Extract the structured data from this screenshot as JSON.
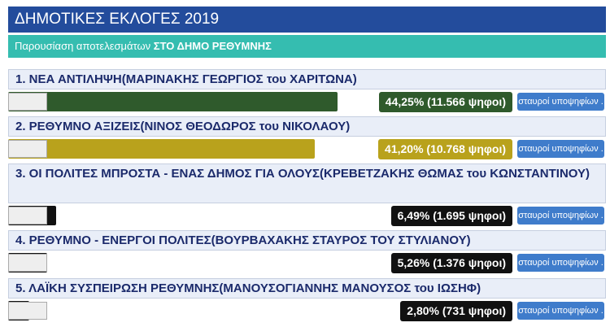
{
  "header": {
    "title": "ΔΗΜΟΤΙΚΕΣ ΕΚΛΟΓΕΣ 2019"
  },
  "subheader": {
    "text": "Παρουσίαση αποτελεσμάτων",
    "bold": "ΣΤΟ ΔΗΜΟ ΡΕΘΥΜΝΗΣ"
  },
  "parties": [
    {
      "name": "1. ΝΕΑ ΑΝΤΙΛΗΨΗ(ΜΑΡΙΝΑΚΗΣ ΓΕΩΡΓΙΟΣ του ΧΑΡΙΤΩΝΑ)",
      "value": 44.25,
      "value_label": "44,25% (11.566 ψηφοι)",
      "color": "#2f5a2c",
      "button": "σταυροί υποψηφίων . . ."
    },
    {
      "name": "2. ΡΕΘΥΜΝΟ ΑΞΙΖΕΙΣ(ΝΙΝΟΣ ΘΕΟΔΩΡΟΣ του ΝΙΚΟΛΑΟΥ)",
      "value": 41.2,
      "value_label": "41,20% (10.768 ψηφοι)",
      "color": "#b9a21c",
      "button": "σταυροί υποψηφίων . . ."
    },
    {
      "name": "3. ΟΙ ΠΟΛΙΤΕΣ ΜΠΡΟΣΤΑ - ΕΝΑΣ ΔΗΜΟΣ ΓΙΑ ΟΛΟΥΣ(ΚΡΕΒΕΤΖΑΚΗΣ ΘΩΜΑΣ του ΚΩΝΣΤΑΝΤΙΝΟΥ)",
      "value": 6.49,
      "value_label": "6,49% (1.695 ψηφοι)",
      "color": "#111111",
      "button": "σταυροί υποψηφίων . . ."
    },
    {
      "name": "4. ΡΕΘΥΜΝΟ - ΕΝΕΡΓΟΙ ΠΟΛΙΤΕΣ(ΒΟΥΡΒΑΧΑΚΗΣ ΣΤΑΥΡΟΣ ΤΟΥ ΣΤΥΛΙΑΝΟΥ)",
      "value": 5.26,
      "value_label": "5,26% (1.376 ψηφοι)",
      "color": "#111111",
      "button": "σταυροί υποψηφίων . . ."
    },
    {
      "name": "5. ΛΑΪΚΗ ΣΥΣΠΕΙΡΩΣΗ ΡΕΘΥΜΝΗΣ(ΜΑΝΟΥΣΟΓΙΑΝΝΗΣ ΜΑΝΟΥΣΟΣ του ΙΩΣΗΦ)",
      "value": 2.8,
      "value_label": "2,80% (731 ψηφοι)",
      "color": "#111111",
      "button": "σταυροί υποψηφίων . . ."
    }
  ]
}
